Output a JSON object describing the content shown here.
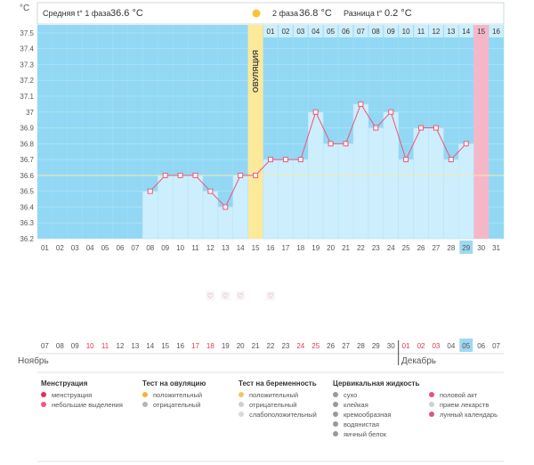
{
  "header": {
    "phase1_label": "Средняя t° 1 фаза",
    "phase1_value": "36.6 °C",
    "phase2_label": "2 фаза",
    "phase2_value": "36.8 °C",
    "diff_label": "Разница t°",
    "diff_value": "0.2 °C",
    "unit_label": "°C"
  },
  "ovulation_label": "ОВУЛЯЦИЯ",
  "chart_data": {
    "type": "line",
    "ylim": [
      36.2,
      37.5
    ],
    "yticks": [
      "36.2",
      "36.3",
      "36.4",
      "36.5",
      "36.6",
      "36.7",
      "36.8",
      "36.9",
      "37",
      "37.1",
      "37.2",
      "37.3",
      "37.4",
      "37.5"
    ],
    "cycle_days": [
      "01",
      "02",
      "03",
      "04",
      "05",
      "06",
      "07",
      "08",
      "09",
      "10",
      "11",
      "12",
      "13",
      "14",
      "15",
      "16",
      "17",
      "18",
      "19",
      "20",
      "21",
      "22",
      "23",
      "24",
      "25",
      "26",
      "27",
      "28",
      "29",
      "30",
      "31"
    ],
    "top_days": [
      "01",
      "02",
      "03",
      "04",
      "05",
      "06",
      "07",
      "08",
      "09",
      "10",
      "11",
      "12",
      "13",
      "14",
      "15",
      "16"
    ],
    "current_day_index": 28,
    "ovulation_day_index": 14,
    "phase2_start_index": 15,
    "period_day_index": 29,
    "coverline": 36.6,
    "temps": [
      null,
      null,
      null,
      null,
      null,
      null,
      null,
      36.5,
      36.6,
      36.6,
      36.6,
      36.5,
      36.4,
      36.6,
      36.6,
      36.7,
      36.7,
      36.7,
      37.0,
      36.8,
      36.8,
      37.05,
      36.9,
      37.0,
      36.7,
      36.9,
      36.9,
      36.7,
      36.8,
      null,
      null
    ],
    "intercourse_day_indices": [
      11,
      12,
      13,
      15
    ],
    "dates": [
      "07",
      "08",
      "09",
      "10",
      "11",
      "12",
      "13",
      "14",
      "15",
      "16",
      "17",
      "18",
      "19",
      "20",
      "21",
      "22",
      "23",
      "24",
      "25",
      "26",
      "27",
      "28",
      "29",
      "30",
      "01",
      "02",
      "03",
      "04",
      "05",
      "06",
      "07"
    ],
    "red_date_indices": [
      3,
      4,
      10,
      11,
      17,
      18,
      24,
      25,
      26
    ],
    "today_date_index": 28,
    "month_start": "Ноябрь",
    "month_next": "Декабрь"
  },
  "legend": {
    "columns": [
      {
        "title": "Менструация",
        "items": [
          "менструация",
          "небольшие выделения"
        ]
      },
      {
        "title": "Тест на овуляцию",
        "items": [
          "положительный",
          "отрицательный"
        ]
      },
      {
        "title": "Тест на беременность",
        "items": [
          "положительный",
          "отрицательный",
          "слабоположительный"
        ]
      },
      {
        "title": "Цервикальная жидкость",
        "items": [
          "сухо",
          "клейкая",
          "кремообразная",
          "водянистая",
          "яичный белок"
        ]
      },
      {
        "title": "",
        "items": [
          "половой акт",
          "прием лекарств",
          "лунный календарь"
        ]
      }
    ]
  },
  "colors": {
    "plot_bg": "#92d8f4",
    "fill": "#cdeefc",
    "line": "#ee5577",
    "ovulation": "#fde99a",
    "period": "#f5b7c8",
    "today": "#9fd8f2"
  }
}
